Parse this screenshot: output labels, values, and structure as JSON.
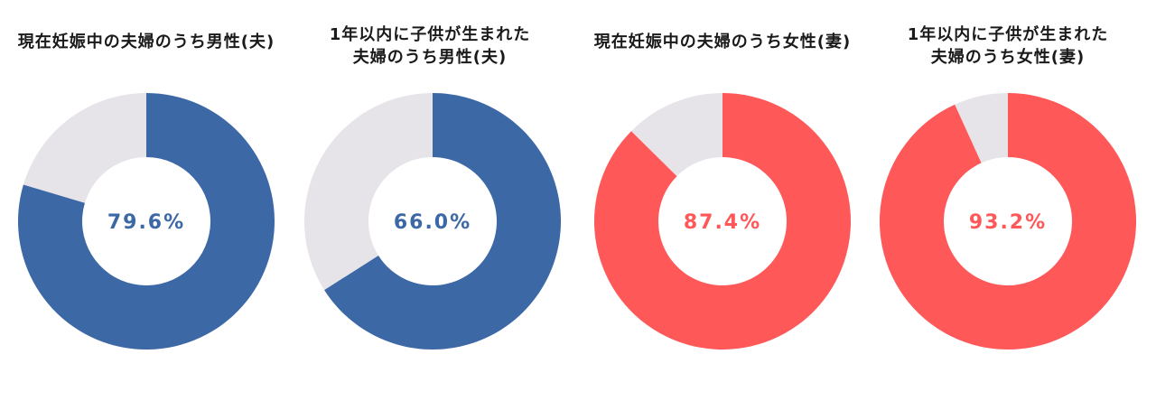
{
  "chart_data": [
    {
      "type": "pie",
      "title": "現在妊娠中の夫婦のうち男性(夫)",
      "value_percent": 79.6,
      "label": "79.6%",
      "fill_color": "#3c68a6",
      "rest_color": "#e6e4e8"
    },
    {
      "type": "pie",
      "title": "1年以内に子供が生まれた\n夫婦のうち男性(夫)",
      "value_percent": 66.0,
      "label": "66.0%",
      "fill_color": "#3c68a6",
      "rest_color": "#e6e4e8"
    },
    {
      "type": "pie",
      "title": "現在妊娠中の夫婦のうち女性(妻)",
      "value_percent": 87.4,
      "label": "87.4%",
      "fill_color": "#fe5859",
      "rest_color": "#e6e4e8"
    },
    {
      "type": "pie",
      "title": "1年以内に子供が生まれた\n夫婦のうち女性(妻)",
      "value_percent": 93.2,
      "label": "93.2%",
      "fill_color": "#fe5859",
      "rest_color": "#e6e4e8"
    }
  ]
}
